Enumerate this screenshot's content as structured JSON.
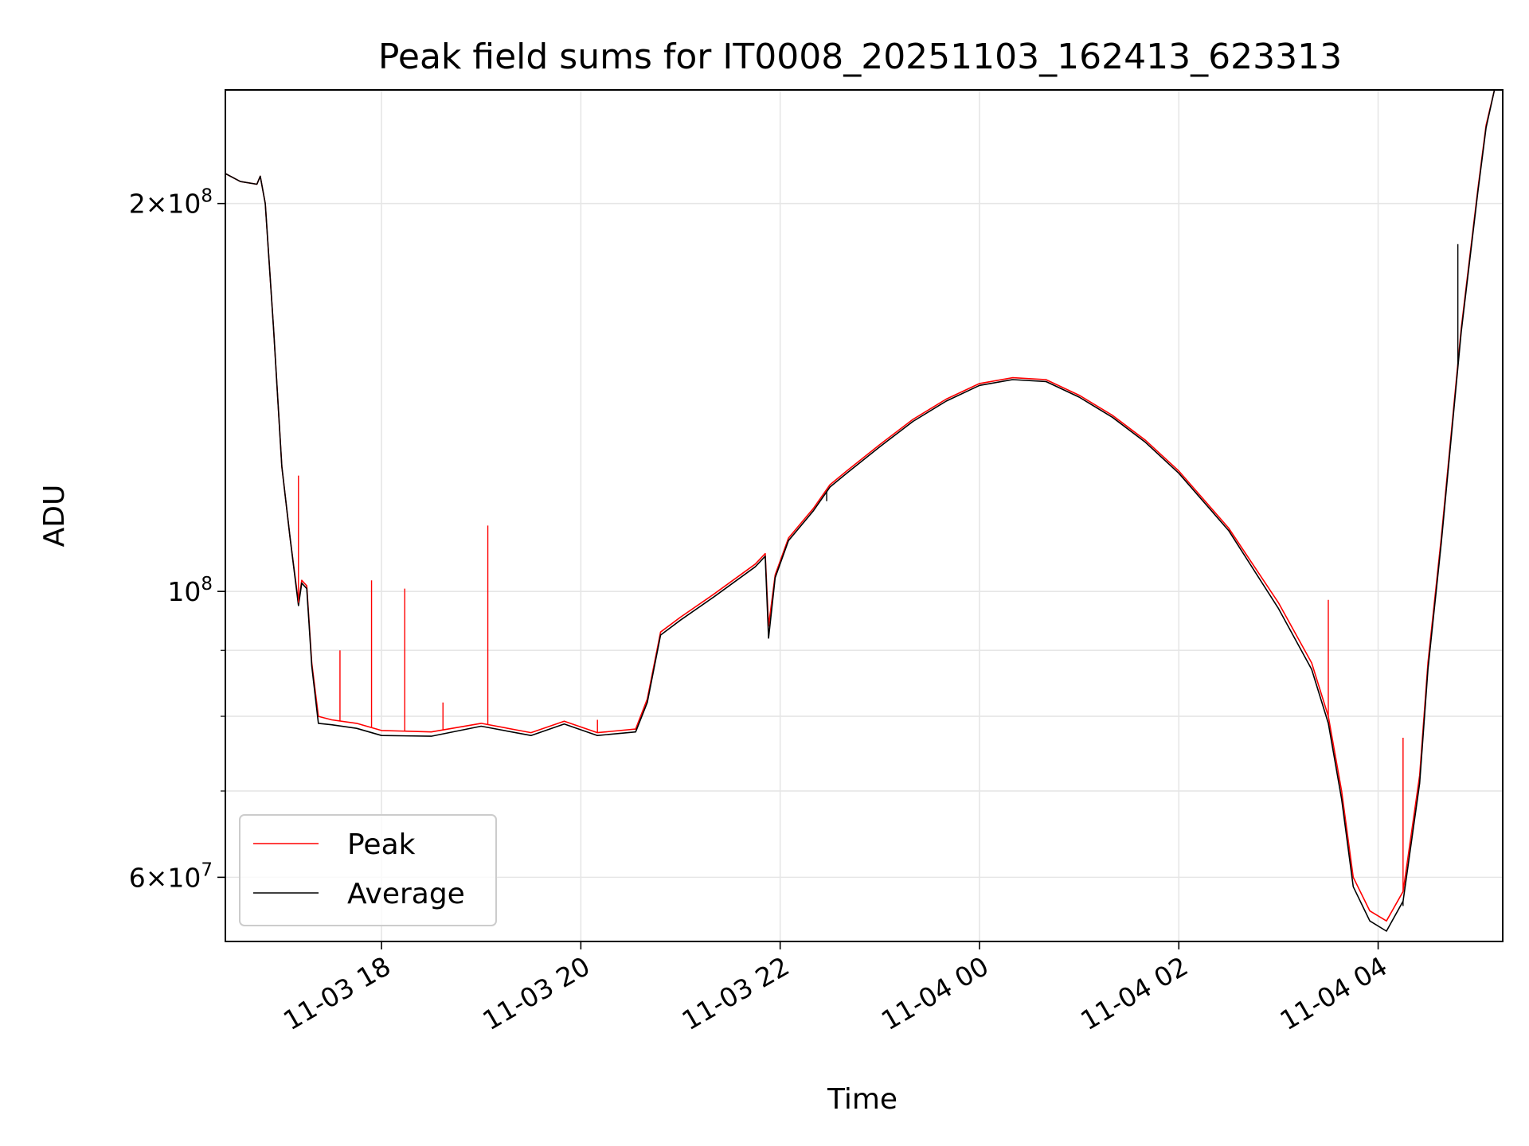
{
  "chart_data": {
    "type": "line",
    "title": "Peak field sums for IT0008_20251103_162413_623313",
    "xlabel": "Time",
    "ylabel": "ADU",
    "yscale": "log",
    "xlim": [
      "2025-11-03 16:26",
      "2025-11-04 05:15"
    ],
    "ylim": [
      53500000,
      245000000
    ],
    "grid": true,
    "legend": "lower-left",
    "x_ticks": [
      "11-03 18",
      "11-03 20",
      "11-03 22",
      "11-04 00",
      "11-04 02",
      "11-04 04"
    ],
    "x_tick_times": [
      "2025-11-03 18:00",
      "2025-11-03 20:00",
      "2025-11-03 22:00",
      "2025-11-04 00:00",
      "2025-11-04 02:00",
      "2025-11-04 04:00"
    ],
    "y_major_ticks": [
      {
        "value": 60000000,
        "mant": "6",
        "exp": "7"
      },
      {
        "value": 100000000,
        "mant": "",
        "exp": "8"
      },
      {
        "value": 200000000,
        "mant": "2",
        "exp": "8"
      }
    ],
    "y_minor_ticks": [
      70000000,
      80000000,
      90000000
    ],
    "colors": {
      "peak": "#ff0000",
      "average": "#000000"
    },
    "x": [
      "2025-11-03 16:26",
      "2025-11-03 16:35",
      "2025-11-03 16:45",
      "2025-11-03 16:47",
      "2025-11-03 16:50",
      "2025-11-03 16:55",
      "2025-11-03 17:00",
      "2025-11-03 17:05",
      "2025-11-03 17:10",
      "2025-11-03 17:12",
      "2025-11-03 17:15",
      "2025-11-03 17:18",
      "2025-11-03 17:22",
      "2025-11-03 17:30",
      "2025-11-03 17:45",
      "2025-11-03 18:00",
      "2025-11-03 18:30",
      "2025-11-03 19:00",
      "2025-11-03 19:30",
      "2025-11-03 19:50",
      "2025-11-03 20:10",
      "2025-11-03 20:33",
      "2025-11-03 20:40",
      "2025-11-03 20:48",
      "2025-11-03 21:00",
      "2025-11-03 21:20",
      "2025-11-03 21:45",
      "2025-11-03 21:51",
      "2025-11-03 21:53",
      "2025-11-03 21:57",
      "2025-11-03 22:05",
      "2025-11-03 22:20",
      "2025-11-03 22:30",
      "2025-11-03 22:40",
      "2025-11-03 23:00",
      "2025-11-03 23:20",
      "2025-11-03 23:40",
      "2025-11-04 00:00",
      "2025-11-04 00:20",
      "2025-11-04 00:40",
      "2025-11-04 01:00",
      "2025-11-04 01:20",
      "2025-11-04 01:40",
      "2025-11-04 02:00",
      "2025-11-04 02:30",
      "2025-11-04 03:00",
      "2025-11-04 03:20",
      "2025-11-04 03:30",
      "2025-11-04 03:38",
      "2025-11-04 03:45",
      "2025-11-04 03:55",
      "2025-11-04 04:05",
      "2025-11-04 04:15",
      "2025-11-04 04:25",
      "2025-11-04 04:30",
      "2025-11-04 04:38",
      "2025-11-04 04:50",
      "2025-11-04 05:00",
      "2025-11-04 05:05",
      "2025-11-04 05:10",
      "2025-11-04 05:15"
    ],
    "series": [
      {
        "name": "Peak",
        "values": [
          211000000,
          208000000,
          207000000,
          210000000,
          200000000,
          160000000,
          125000000,
          110000000,
          98000000,
          102000000,
          101000000,
          88000000,
          80000000,
          79500000,
          79000000,
          78000000,
          77800000,
          79000000,
          77700000,
          79300000,
          77700000,
          78200000,
          82500000,
          93000000,
          95500000,
          99500000,
          105000000,
          107000000,
          94000000,
          103000000,
          110000000,
          116000000,
          121000000,
          124000000,
          130000000,
          136000000,
          141000000,
          145000000,
          146500000,
          146000000,
          142000000,
          137000000,
          131000000,
          124000000,
          112000000,
          98000000,
          88000000,
          80000000,
          70000000,
          60000000,
          56500000,
          55500000,
          58500000,
          72000000,
          88000000,
          110000000,
          160000000,
          205000000,
          230000000,
          245000000,
          245000000
        ],
        "spikes": [
          {
            "x": "2025-11-03 17:10",
            "y": 123000000
          },
          {
            "x": "2025-11-03 17:35",
            "y": 90000000
          },
          {
            "x": "2025-11-03 17:54",
            "y": 102000000
          },
          {
            "x": "2025-11-03 18:14",
            "y": 100500000
          },
          {
            "x": "2025-11-03 18:37",
            "y": 82000000
          },
          {
            "x": "2025-11-03 19:04",
            "y": 112500000
          },
          {
            "x": "2025-11-03 20:10",
            "y": 79500000
          },
          {
            "x": "2025-11-04 03:30",
            "y": 98500000
          },
          {
            "x": "2025-11-04 04:15",
            "y": 77000000
          }
        ]
      },
      {
        "name": "Average",
        "values": [
          211000000,
          208000000,
          207000000,
          210000000,
          200000000,
          160000000,
          125000000,
          110000000,
          97500000,
          101500000,
          100500000,
          87500000,
          79000000,
          78800000,
          78300000,
          77300000,
          77200000,
          78600000,
          77300000,
          78900000,
          77300000,
          77800000,
          82000000,
          92500000,
          95000000,
          99000000,
          104500000,
          106500000,
          92000000,
          102500000,
          109500000,
          115500000,
          120500000,
          123500000,
          129500000,
          135500000,
          140500000,
          144500000,
          146000000,
          145500000,
          141500000,
          136500000,
          130500000,
          123500000,
          111500000,
          97000000,
          87000000,
          79000000,
          69000000,
          59000000,
          55500000,
          54500000,
          57500000,
          71000000,
          87000000,
          109000000,
          159000000,
          204000000,
          229000000,
          245000000,
          245000000
        ],
        "spikes": [
          {
            "x": "2025-11-03 22:28",
            "y": 117500000
          },
          {
            "x": "2025-11-04 04:15",
            "y": 57000000
          },
          {
            "x": "2025-11-04 04:48",
            "y": 186000000
          }
        ]
      }
    ]
  }
}
